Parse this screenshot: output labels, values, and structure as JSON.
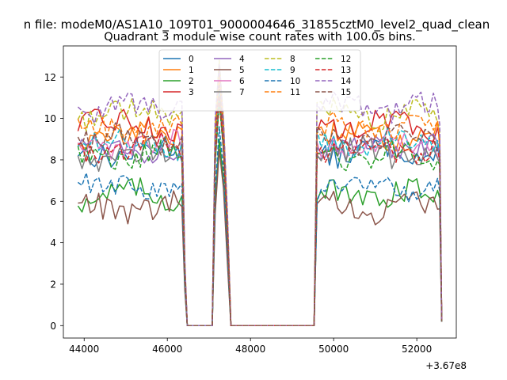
{
  "chart_data": {
    "type": "line",
    "suptitle": "n file: modeM0/AS1A10_109T01_9000004646_31855cztM0_level2_quad_clean",
    "title": "Quadrant 3 module wise count rates with 100.0s bins.",
    "xlabel": "",
    "ylabel": "",
    "x_offset_label": "+3.67e8",
    "xlim": [
      43500,
      52950
    ],
    "ylim": [
      -0.6,
      13.5
    ],
    "xticks": [
      44000,
      46000,
      48000,
      50000,
      52000
    ],
    "yticks": [
      0,
      2,
      4,
      6,
      8,
      10,
      12
    ],
    "grid": false,
    "legend_position": "top-center",
    "legend_columns": 4,
    "time_segments": [
      {
        "start": 43850,
        "end": 46350
      },
      {
        "start": 47150,
        "end": 47450
      },
      {
        "start": 49550,
        "end": 52550
      }
    ],
    "series": [
      {
        "name": "0",
        "color": "#1f77b4",
        "dash": "solid",
        "level": 8.4,
        "peak": 11.0
      },
      {
        "name": "1",
        "color": "#ff7f0e",
        "dash": "solid",
        "level": 9.2,
        "peak": 12.3
      },
      {
        "name": "2",
        "color": "#2ca02c",
        "dash": "solid",
        "level": 6.3,
        "peak": 9.0
      },
      {
        "name": "3",
        "color": "#d62728",
        "dash": "solid",
        "level": 9.7,
        "peak": 12.5
      },
      {
        "name": "4",
        "color": "#9467bd",
        "dash": "solid",
        "level": 8.6,
        "peak": 11.4
      },
      {
        "name": "5",
        "color": "#8c564b",
        "dash": "solid",
        "level": 5.7,
        "peak": 8.5
      },
      {
        "name": "6",
        "color": "#e377c2",
        "dash": "solid",
        "level": 8.7,
        "peak": 11.2
      },
      {
        "name": "7",
        "color": "#7f7f7f",
        "dash": "solid",
        "level": 8.3,
        "peak": 10.9
      },
      {
        "name": "8",
        "color": "#bcbd22",
        "dash": "dashed",
        "level": 10.2,
        "peak": 12.8
      },
      {
        "name": "9",
        "color": "#17becf",
        "dash": "dashed",
        "level": 8.8,
        "peak": 11.3
      },
      {
        "name": "10",
        "color": "#1f77b4",
        "dash": "dashed",
        "level": 6.7,
        "peak": 9.6
      },
      {
        "name": "11",
        "color": "#ff7f0e",
        "dash": "dashed",
        "level": 9.5,
        "peak": 12.0
      },
      {
        "name": "12",
        "color": "#2ca02c",
        "dash": "dashed",
        "level": 8.2,
        "peak": 10.8
      },
      {
        "name": "13",
        "color": "#d62728",
        "dash": "dashed",
        "level": 8.5,
        "peak": 11.1
      },
      {
        "name": "14",
        "color": "#9467bd",
        "dash": "dashed",
        "level": 10.5,
        "peak": 12.6
      },
      {
        "name": "15",
        "color": "#8c564b",
        "dash": "dashed",
        "level": 9.0,
        "peak": 11.6
      }
    ]
  }
}
